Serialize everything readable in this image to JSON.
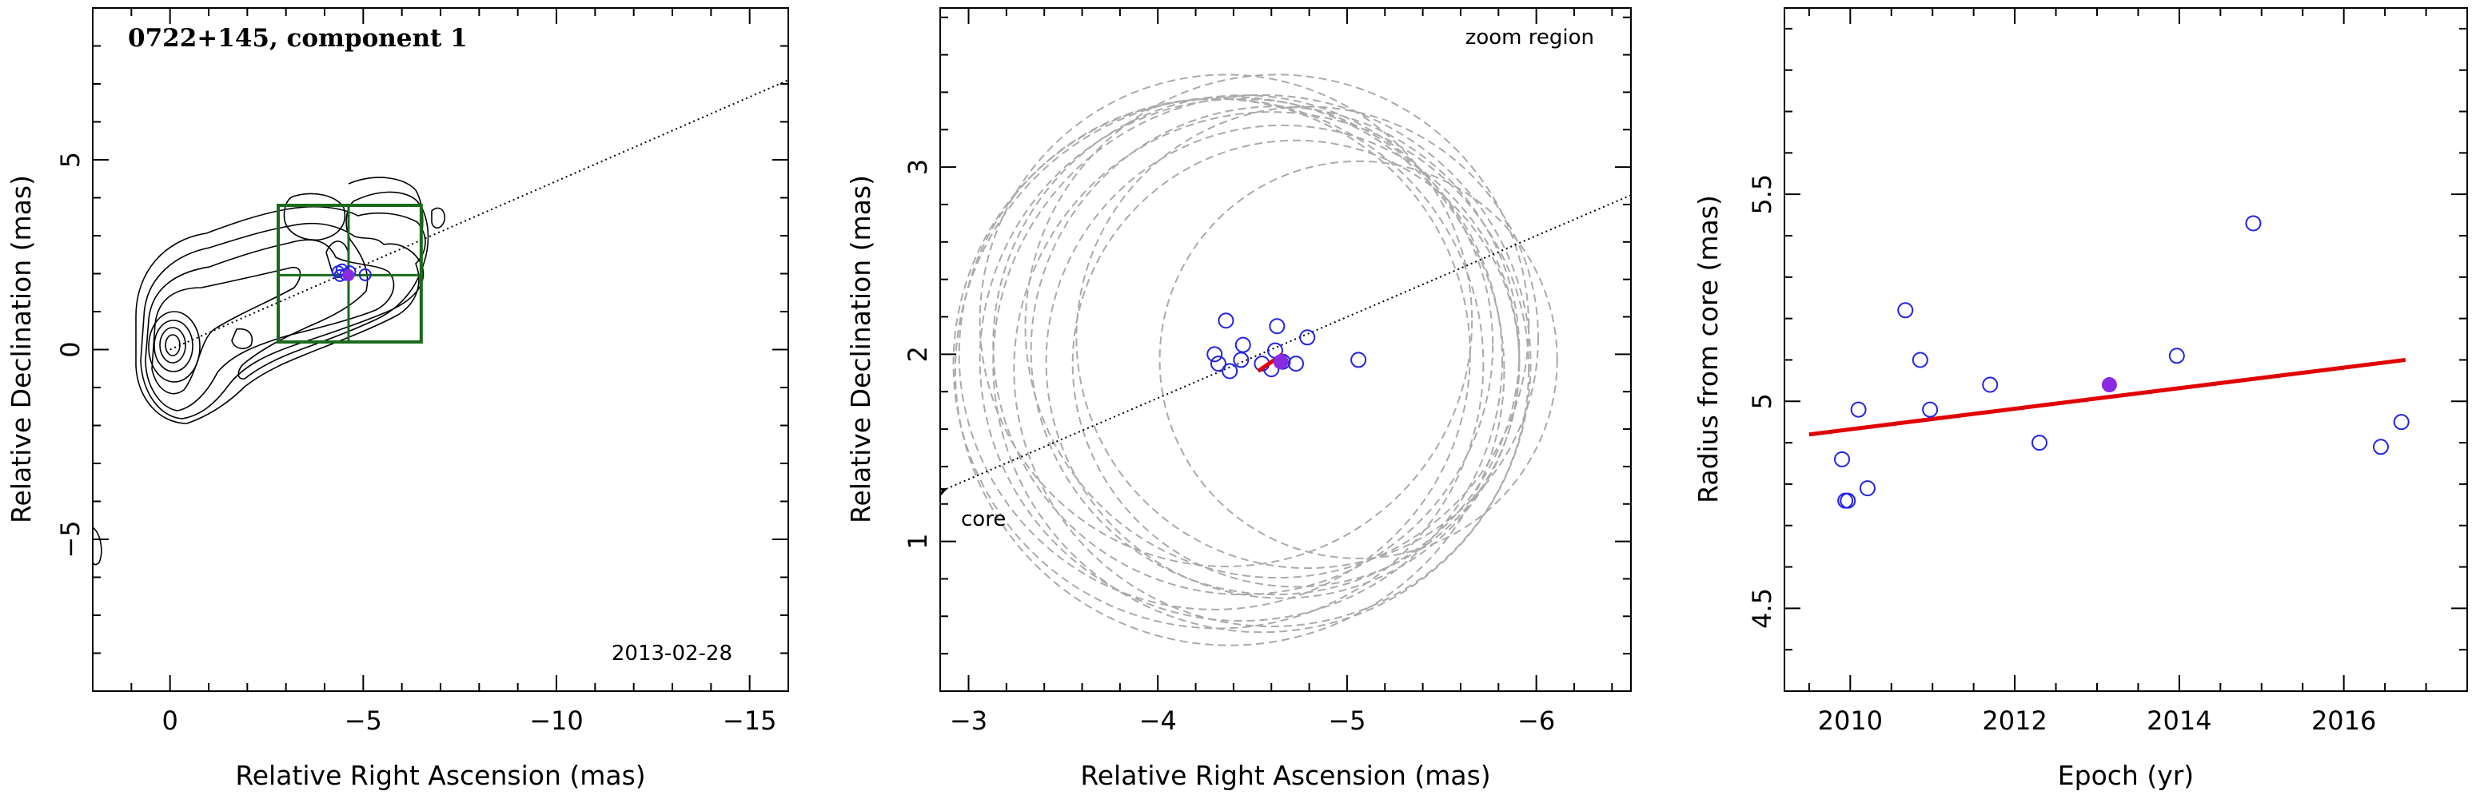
{
  "chart_data": [
    {
      "type": "contour",
      "title": "0722+145, component 1",
      "date": "2013-02-28",
      "xlabel": "Relative Right Ascension (mas)",
      "ylabel": "Relative Declination (mas)",
      "xlim": [
        2,
        -16
      ],
      "ylim": [
        -9,
        9
      ],
      "xticks": [
        0,
        -5,
        -10,
        -15
      ],
      "xtick_labels": [
        "0",
        "−5",
        "−10",
        "−15"
      ],
      "yticks": [
        -5,
        0,
        5
      ],
      "ytick_labels": [
        "−5",
        "0",
        "5"
      ],
      "component_position": [
        -4.62,
        1.96
      ],
      "zoom_box": {
        "x": [
          -2.8,
          -6.5
        ],
        "y": [
          0.2,
          3.8
        ]
      },
      "jet_direction_line": {
        "from": [
          0,
          0
        ],
        "to": [
          -16,
          7.1
        ]
      },
      "epoch_points": [
        [
          -4.35,
          2.05
        ],
        [
          -4.45,
          2.1
        ],
        [
          -4.55,
          1.98
        ],
        [
          -4.65,
          2.05
        ],
        [
          -5.05,
          1.97
        ],
        [
          -4.4,
          1.95
        ]
      ]
    },
    {
      "type": "scatter",
      "annotation": "zoom region",
      "core_label": "core",
      "xlabel": "Relative Right Ascension (mas)",
      "ylabel": "Relative Declination (mas)",
      "xlim": [
        -2.85,
        -6.5
      ],
      "ylim": [
        0.2,
        3.85
      ],
      "xticks": [
        -3,
        -4,
        -5,
        -6
      ],
      "xtick_labels": [
        "−3",
        "−4",
        "−5",
        "−6"
      ],
      "yticks": [
        1,
        2,
        3
      ],
      "ytick_labels": [
        "1",
        "2",
        "3"
      ],
      "points": [
        {
          "x": -4.3,
          "y": 2.0
        },
        {
          "x": -4.32,
          "y": 1.95
        },
        {
          "x": -4.36,
          "y": 2.18
        },
        {
          "x": -4.38,
          "y": 1.91
        },
        {
          "x": -4.44,
          "y": 1.97
        },
        {
          "x": -4.45,
          "y": 2.05
        },
        {
          "x": -4.55,
          "y": 1.95
        },
        {
          "x": -4.6,
          "y": 1.92
        },
        {
          "x": -4.62,
          "y": 2.02
        },
        {
          "x": -4.63,
          "y": 2.15
        },
        {
          "x": -4.66,
          "y": 1.96
        },
        {
          "x": -4.73,
          "y": 1.95
        },
        {
          "x": -4.79,
          "y": 2.09
        },
        {
          "x": -5.06,
          "y": 1.97
        }
      ],
      "mean_position": {
        "x": -4.65,
        "y": 1.96
      },
      "velocity_vector": {
        "from": [
          -4.53,
          1.91
        ],
        "to": [
          -4.66,
          2.0
        ]
      },
      "jet_direction_line": {
        "from": [
          -2.85,
          1.265
        ],
        "to": [
          -6.5,
          2.85
        ]
      },
      "error_circles": [
        {
          "cx": -4.3,
          "cy": 2.0,
          "r": 1.35
        },
        {
          "cx": -4.32,
          "cy": 1.95,
          "r": 1.4
        },
        {
          "cx": -4.36,
          "cy": 2.18,
          "r": 1.3
        },
        {
          "cx": -4.38,
          "cy": 1.91,
          "r": 1.45
        },
        {
          "cx": -4.44,
          "cy": 1.97,
          "r": 1.38
        },
        {
          "cx": -4.45,
          "cy": 2.05,
          "r": 1.32
        },
        {
          "cx": -4.55,
          "cy": 1.95,
          "r": 1.42
        },
        {
          "cx": -4.6,
          "cy": 1.92,
          "r": 1.36
        },
        {
          "cx": -4.62,
          "cy": 2.02,
          "r": 1.29
        },
        {
          "cx": -4.63,
          "cy": 2.15,
          "r": 1.33
        },
        {
          "cx": -4.66,
          "cy": 1.96,
          "r": 1.25
        },
        {
          "cx": -4.73,
          "cy": 1.95,
          "r": 1.18
        },
        {
          "cx": -4.79,
          "cy": 2.09,
          "r": 1.22
        },
        {
          "cx": -5.06,
          "cy": 1.97,
          "r": 1.05
        }
      ]
    },
    {
      "type": "scatter",
      "xlabel": "Epoch (yr)",
      "ylabel": "Radius from core (mas)",
      "xlim": [
        2009.2,
        2017.5
      ],
      "ylim": [
        4.3,
        5.95
      ],
      "xticks": [
        2010,
        2012,
        2014,
        2016
      ],
      "xtick_labels": [
        "2010",
        "2012",
        "2014",
        "2016"
      ],
      "yticks": [
        4.5,
        5,
        5.5
      ],
      "ytick_labels": [
        "4.5",
        "5",
        "5.5"
      ],
      "points": [
        {
          "x": 2009.9,
          "y": 4.86
        },
        {
          "x": 2009.94,
          "y": 4.76
        },
        {
          "x": 2009.97,
          "y": 4.76
        },
        {
          "x": 2010.1,
          "y": 4.98
        },
        {
          "x": 2010.21,
          "y": 4.79
        },
        {
          "x": 2010.67,
          "y": 5.22
        },
        {
          "x": 2010.85,
          "y": 5.1
        },
        {
          "x": 2010.97,
          "y": 4.98
        },
        {
          "x": 2011.7,
          "y": 5.04
        },
        {
          "x": 2012.3,
          "y": 4.9
        },
        {
          "x": 2013.97,
          "y": 5.11
        },
        {
          "x": 2014.9,
          "y": 5.43
        },
        {
          "x": 2016.45,
          "y": 4.89
        },
        {
          "x": 2016.7,
          "y": 4.95
        }
      ],
      "mean_point": {
        "x": 2013.15,
        "y": 5.04
      },
      "fit_line": {
        "x": [
          2009.5,
          2016.75
        ],
        "y": [
          4.92,
          5.1
        ]
      }
    }
  ]
}
